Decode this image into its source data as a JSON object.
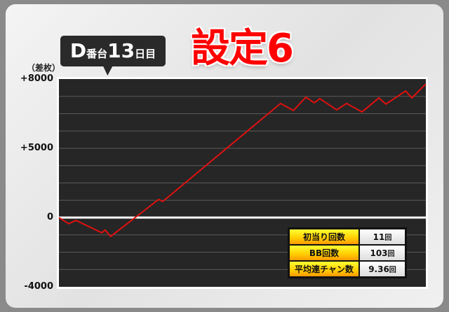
{
  "header": {
    "machine_prefix": "D",
    "machine_label": "番台",
    "day_number": "13",
    "day_suffix": "日目",
    "title": "設定6"
  },
  "chart_data": {
    "type": "line",
    "ylabel": "（差枚）",
    "yticks": [
      "+8000",
      "+5000",
      "0",
      "-4000"
    ],
    "ylim": [
      -4000,
      8000
    ],
    "grid": true,
    "line_color": "#e01010",
    "background": "#262626",
    "x": [
      0,
      2.7,
      4.6,
      11.7,
      12.6,
      14.1,
      27.2,
      28.3,
      60.4,
      63.9,
      67.3,
      69.6,
      71.1,
      75.7,
      78.4,
      82.6,
      87.2,
      89.1,
      94.5,
      96.2,
      100
    ],
    "values": [
      0,
      -360,
      -160,
      -880,
      -720,
      -1090,
      1050,
      930,
      6590,
      6180,
      6950,
      6630,
      6870,
      6220,
      6590,
      6100,
      6910,
      6550,
      7310,
      6910,
      7720
    ]
  },
  "stats": [
    {
      "label": "初当り回数",
      "value": "11",
      "unit": "回"
    },
    {
      "label": "BB回数",
      "value": "103",
      "unit": "回"
    },
    {
      "label": "平均連チャン数",
      "value": "9.36",
      "unit": "回"
    }
  ]
}
